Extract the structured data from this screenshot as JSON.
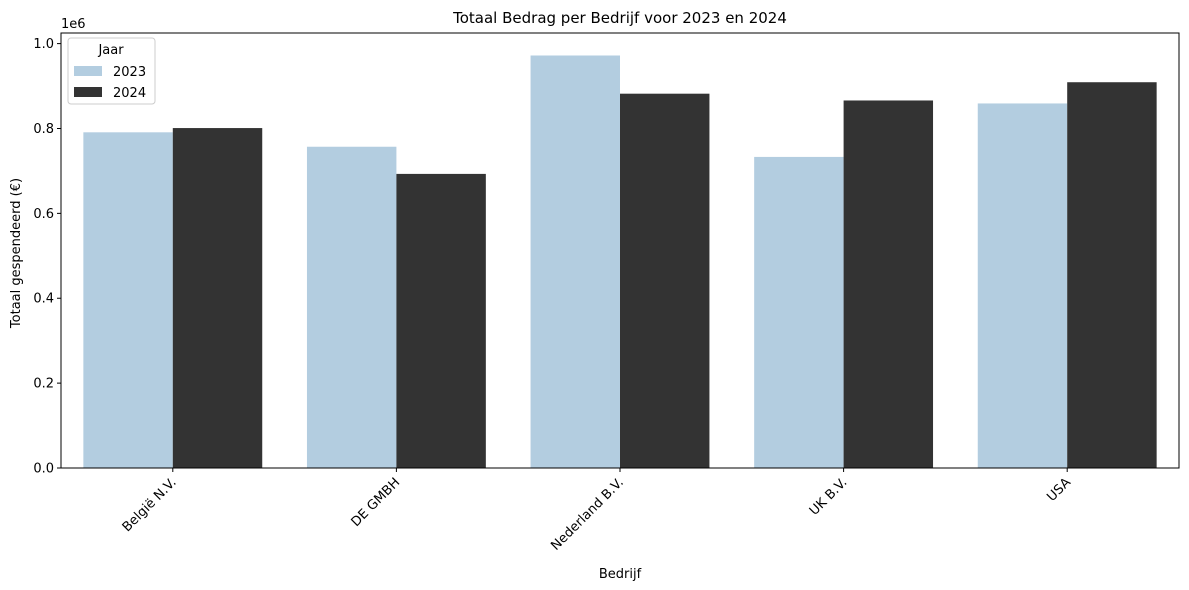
{
  "chart_data": {
    "type": "bar",
    "title": "Totaal Bedrag per Bedrijf voor 2023 en 2024",
    "xlabel": "Bedrijf",
    "ylabel": "Totaal gespendeerd (€)",
    "y_offset_label": "1e6",
    "categories": [
      "België N.V.",
      "DE GMBH",
      "Nederland B.V.",
      "UK B.V.",
      "USA"
    ],
    "series": [
      {
        "name": "2023",
        "color": "#b3cde0",
        "values": [
          791000,
          757000,
          972000,
          733000,
          859000
        ]
      },
      {
        "name": "2024",
        "color": "#333333",
        "values": [
          801000,
          693000,
          882000,
          866000,
          909000
        ]
      }
    ],
    "ylim": [
      0,
      1025000
    ],
    "yticks": [
      0,
      200000,
      400000,
      600000,
      800000,
      1000000
    ],
    "ytick_labels": [
      "0.0",
      "0.2",
      "0.4",
      "0.6",
      "0.8",
      "1.0"
    ],
    "grid": false,
    "legend": {
      "title": "Jaar",
      "placement": "top-left"
    }
  }
}
